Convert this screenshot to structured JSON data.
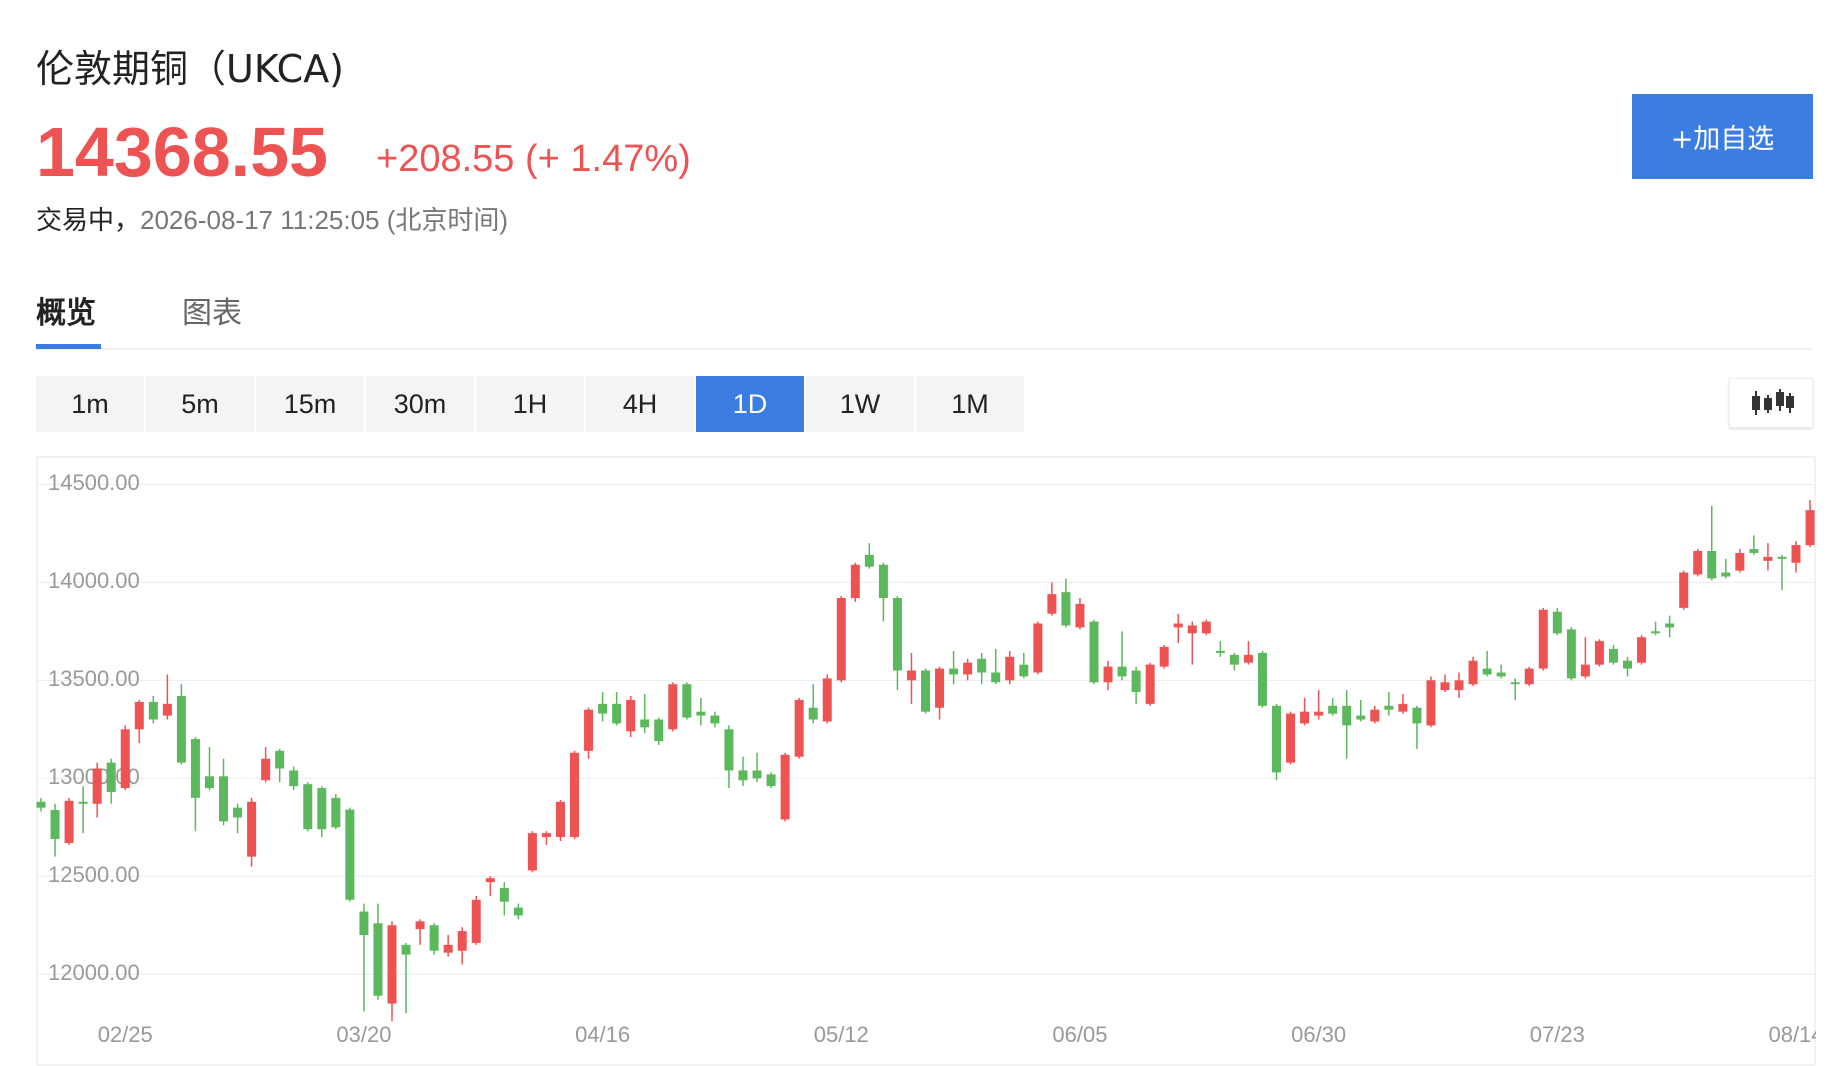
{
  "header": {
    "title": "伦敦期铜（UKCA)",
    "price": "14368.55",
    "change": "+208.55",
    "change_pct": "(+ 1.47%)",
    "status": "交易中，",
    "time": "2026-08-17 11:25:05 (北京时间)",
    "button": "+加自选"
  },
  "tabs": [
    "概览",
    "图表"
  ],
  "intervals": [
    "1m",
    "5m",
    "15m",
    "30m",
    "1H",
    "4H",
    "1D",
    "1W",
    "1M"
  ],
  "active_interval": "1D",
  "chart_data": {
    "type": "candlestick",
    "up_color": "#ec5352",
    "down_color": "#5cb85c",
    "grid": true,
    "ylim": [
      11700,
      14650
    ],
    "yticks": [
      {
        "value": 12000,
        "label": "12000.00"
      },
      {
        "value": 12500,
        "label": "12500.00"
      },
      {
        "value": 13000,
        "label": "13000.00"
      },
      {
        "value": 13500,
        "label": "13500.00"
      },
      {
        "value": 14000,
        "label": "14000.00"
      },
      {
        "value": 14500,
        "label": "14500.00"
      }
    ],
    "categories": [
      null,
      null,
      null,
      null,
      null,
      null,
      "02/25",
      null,
      null,
      null,
      null,
      null,
      null,
      null,
      null,
      null,
      null,
      null,
      null,
      null,
      null,
      null,
      null,
      "03/20",
      null,
      null,
      null,
      null,
      null,
      null,
      null,
      null,
      null,
      null,
      null,
      null,
      null,
      null,
      null,
      null,
      "04/16",
      null,
      null,
      null,
      null,
      null,
      null,
      null,
      null,
      null,
      null,
      null,
      null,
      null,
      null,
      null,
      null,
      "05/12",
      null,
      null,
      null,
      null,
      null,
      null,
      null,
      null,
      null,
      null,
      null,
      null,
      null,
      null,
      null,
      null,
      "06/05",
      null,
      null,
      null,
      null,
      null,
      null,
      null,
      null,
      null,
      null,
      null,
      null,
      null,
      null,
      null,
      null,
      "06/30",
      null,
      null,
      null,
      null,
      null,
      null,
      null,
      null,
      null,
      null,
      null,
      null,
      null,
      null,
      null,
      null,
      "07/23",
      null,
      null,
      null,
      null,
      null,
      null,
      null,
      null,
      null,
      null,
      null,
      null,
      null,
      null,
      null,
      null,
      "08/14",
      null
    ],
    "open": [
      12880,
      12838,
      12670,
      12880,
      12870,
      13080,
      12950,
      13250,
      13390,
      13320,
      13420,
      13200,
      13010,
      13010,
      12850,
      12600,
      12990,
      13140,
      13040,
      12970,
      12950,
      12900,
      12840,
      12320,
      12260,
      11850,
      12150,
      12230,
      12250,
      12110,
      12120,
      12160,
      12470,
      12440,
      12340,
      12530,
      12700,
      12700,
      12700,
      13140,
      13380,
      13380,
      13240,
      13300,
      13300,
      13250,
      13480,
      13340,
      13320,
      13250,
      13040,
      13040,
      13020,
      12790,
      13110,
      13360,
      13290,
      13500,
      13920,
      14140,
      14090,
      13920,
      13500,
      13550,
      13360,
      13560,
      13530,
      13610,
      13540,
      13500,
      13580,
      13540,
      13840,
      13950,
      13770,
      13800,
      13490,
      13570,
      13550,
      13380,
      13570,
      13770,
      13740,
      13740,
      13650,
      13630,
      13590,
      13640,
      13370,
      13080,
      13280,
      13320,
      13370,
      13370,
      13320,
      13290,
      13370,
      13340,
      13360,
      13270,
      13450,
      13450,
      13480,
      13560,
      13540,
      13490,
      13480,
      13560,
      13850,
      13760,
      13520,
      13580,
      13660,
      13600,
      13590,
      13750,
      13790,
      13870,
      14040,
      14160,
      14050,
      14060,
      14170,
      14110,
      14130,
      14100,
      14190
    ],
    "high": [
      12900,
      12870,
      12900,
      12960,
      13080,
      13100,
      13270,
      13400,
      13420,
      13530,
      13480,
      13210,
      13160,
      13100,
      12870,
      12900,
      13160,
      13150,
      13060,
      12980,
      12960,
      12920,
      12850,
      12360,
      12360,
      12270,
      12160,
      12280,
      12260,
      12200,
      12240,
      12400,
      12500,
      12470,
      12360,
      12730,
      12730,
      12890,
      13140,
      13360,
      13440,
      13440,
      13420,
      13430,
      13310,
      13490,
      13490,
      13410,
      13340,
      13270,
      13110,
      13130,
      13030,
      13130,
      13410,
      13480,
      13530,
      13930,
      14100,
      14200,
      14100,
      13930,
      13640,
      13560,
      13570,
      13650,
      13610,
      13640,
      13660,
      13650,
      13640,
      13800,
      14000,
      14020,
      13920,
      13810,
      13600,
      13750,
      13570,
      13590,
      13680,
      13840,
      13800,
      13810,
      13700,
      13640,
      13700,
      13650,
      13380,
      13340,
      13410,
      13450,
      13410,
      13450,
      13400,
      13370,
      13440,
      13430,
      13370,
      13520,
      13530,
      13540,
      13620,
      13650,
      13580,
      13510,
      13570,
      13870,
      13870,
      13770,
      13720,
      13710,
      13680,
      13620,
      13730,
      13800,
      13830,
      14060,
      14170,
      14390,
      14120,
      14170,
      14240,
      14200,
      14140,
      14210,
      14420
    ],
    "low": [
      12830,
      12600,
      12660,
      12720,
      12800,
      12870,
      12940,
      13180,
      13280,
      13300,
      13070,
      12730,
      12940,
      12760,
      12720,
      12550,
      12980,
      12980,
      12940,
      12730,
      12700,
      12740,
      12370,
      11810,
      11870,
      11760,
      11800,
      12150,
      12100,
      12090,
      12050,
      12150,
      12400,
      12300,
      12280,
      12520,
      12660,
      12680,
      12690,
      13100,
      13290,
      13270,
      13210,
      13230,
      13170,
      13240,
      13300,
      13270,
      13260,
      12950,
      12960,
      12980,
      12950,
      12780,
      13100,
      13280,
      13280,
      13490,
      13900,
      14070,
      13800,
      13450,
      13380,
      13330,
      13300,
      13480,
      13500,
      13480,
      13480,
      13480,
      13510,
      13530,
      13830,
      13770,
      13760,
      13480,
      13450,
      13500,
      13380,
      13370,
      13560,
      13690,
      13580,
      13730,
      13620,
      13550,
      13580,
      13360,
      12990,
      13070,
      13270,
      13300,
      13320,
      13100,
      13290,
      13280,
      13320,
      13330,
      13150,
      13260,
      13440,
      13410,
      13470,
      13520,
      13510,
      13400,
      13470,
      13550,
      13730,
      13500,
      13510,
      13570,
      13580,
      13520,
      13580,
      13730,
      13720,
      13860,
      14030,
      14010,
      14020,
      14050,
      14140,
      14060,
      13960,
      14050,
      14180
    ],
    "close": [
      12850,
      12690,
      12885,
      12870,
      13050,
      12930,
      13250,
      13390,
      13300,
      13380,
      13080,
      12900,
      12950,
      12780,
      12800,
      12880,
      13100,
      13050,
      12960,
      12740,
      12740,
      12750,
      12380,
      12200,
      11890,
      12250,
      12100,
      12270,
      12120,
      12150,
      12220,
      12380,
      12490,
      12370,
      12300,
      12720,
      12720,
      12880,
      13130,
      13350,
      13330,
      13280,
      13400,
      13260,
      13190,
      13480,
      13310,
      13320,
      13280,
      13040,
      12990,
      13000,
      12960,
      13120,
      13400,
      13300,
      13510,
      13920,
      14090,
      14080,
      13920,
      13550,
      13550,
      13340,
      13560,
      13530,
      13590,
      13540,
      13490,
      13620,
      13520,
      13790,
      13940,
      13780,
      13890,
      13490,
      13570,
      13520,
      13440,
      13580,
      13670,
      13790,
      13780,
      13800,
      13640,
      13580,
      13630,
      13370,
      13030,
      13330,
      13340,
      13340,
      13330,
      13270,
      13300,
      13350,
      13350,
      13380,
      13280,
      13500,
      13490,
      13500,
      13600,
      13530,
      13520,
      13480,
      13560,
      13860,
      13740,
      13510,
      13580,
      13700,
      13590,
      13560,
      13720,
      13740,
      13770,
      14050,
      14160,
      14020,
      14030,
      14150,
      14150,
      14130,
      14120,
      14190,
      14368.55
    ]
  }
}
